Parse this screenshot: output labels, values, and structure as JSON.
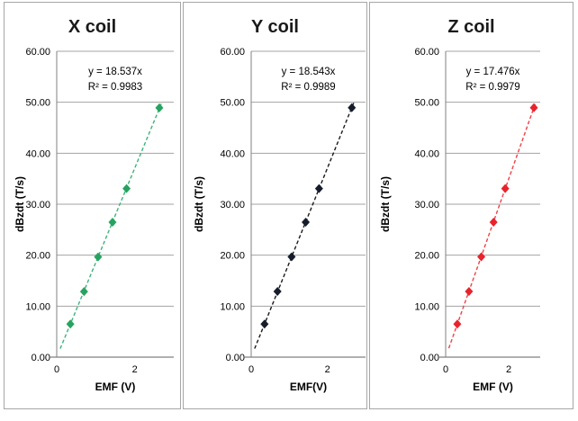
{
  "style": {
    "background": "#ffffff",
    "panel_border": "#a6a6a6",
    "grid_color": "#a3a3a3",
    "axis_color": "#808080",
    "text_color": "#000000"
  },
  "chart_data": [
    {
      "type": "scatter",
      "title": "X coil",
      "annotation": {
        "equation": "y = 18.537x",
        "r_squared": "R² = 0.9983"
      },
      "xlabel": "EMF (V)",
      "ylabel": "dBzdt (T/s)",
      "xlim": [
        0,
        3
      ],
      "ylim": [
        0,
        60
      ],
      "grid": true,
      "legend": false,
      "x_ticks": [
        {
          "v": 0,
          "label": "0"
        },
        {
          "v": 2,
          "label": "2"
        }
      ],
      "y_ticks": [
        {
          "v": 0,
          "label": "0.00"
        },
        {
          "v": 10,
          "label": "10.00"
        },
        {
          "v": 20,
          "label": "20.00"
        },
        {
          "v": 30,
          "label": "30.00"
        },
        {
          "v": 40,
          "label": "40.00"
        },
        {
          "v": 50,
          "label": "50.00"
        },
        {
          "v": 60,
          "label": "60.00"
        }
      ],
      "points": [
        [
          0.35,
          6.49
        ],
        [
          0.7,
          12.87
        ],
        [
          1.06,
          19.66
        ],
        [
          1.43,
          26.46
        ],
        [
          1.79,
          33.06
        ],
        [
          2.63,
          48.9
        ]
      ],
      "trendline": {
        "slope": 18.537,
        "intercept": 0,
        "style": "dashed",
        "x_range": [
          0.09,
          2.68
        ]
      },
      "colors": {
        "marker": "#27a35f",
        "trendline": "#3db47a"
      }
    },
    {
      "type": "scatter",
      "title": "Y coil",
      "annotation": {
        "equation": "y = 18.543x",
        "r_squared": "R² = 0.9989"
      },
      "xlabel": "EMF(V)",
      "ylabel": "dBzdt (T/s)",
      "xlim": [
        0,
        3
      ],
      "ylim": [
        0,
        60
      ],
      "grid": true,
      "legend": false,
      "x_ticks": [
        {
          "v": 0,
          "label": "0"
        },
        {
          "v": 2,
          "label": "2"
        }
      ],
      "y_ticks": [
        {
          "v": 0,
          "label": "0.00"
        },
        {
          "v": 10,
          "label": "10.00"
        },
        {
          "v": 20,
          "label": "20.00"
        },
        {
          "v": 30,
          "label": "30.00"
        },
        {
          "v": 40,
          "label": "40.00"
        },
        {
          "v": 50,
          "label": "50.00"
        },
        {
          "v": 60,
          "label": "60.00"
        }
      ],
      "points": [
        [
          0.35,
          6.49
        ],
        [
          0.69,
          12.88
        ],
        [
          1.06,
          19.67
        ],
        [
          1.43,
          26.47
        ],
        [
          1.78,
          33.07
        ],
        [
          2.64,
          48.92
        ]
      ],
      "trendline": {
        "slope": 18.543,
        "intercept": 0,
        "style": "dashed",
        "x_range": [
          0.09,
          2.69
        ]
      },
      "colors": {
        "marker": "#151c2c",
        "trendline": "#1a1a1a"
      }
    },
    {
      "type": "scatter",
      "title": "Z coil",
      "annotation": {
        "equation": "y = 17.476x",
        "r_squared": "R² = 0.9979"
      },
      "xlabel": "EMF (V)",
      "ylabel": "dBzdt (T/s)",
      "xlim": [
        0,
        3
      ],
      "ylim": [
        0,
        60
      ],
      "grid": true,
      "legend": false,
      "x_ticks": [
        {
          "v": 0,
          "label": "0"
        },
        {
          "v": 2,
          "label": "2"
        }
      ],
      "y_ticks": [
        {
          "v": 0,
          "label": "0.00"
        },
        {
          "v": 10,
          "label": "10.00"
        },
        {
          "v": 20,
          "label": "20.00"
        },
        {
          "v": 30,
          "label": "30.00"
        },
        {
          "v": 40,
          "label": "40.00"
        },
        {
          "v": 50,
          "label": "50.00"
        },
        {
          "v": 60,
          "label": "60.00"
        }
      ],
      "points": [
        [
          0.37,
          6.49
        ],
        [
          0.74,
          12.88
        ],
        [
          1.13,
          19.67
        ],
        [
          1.52,
          26.47
        ],
        [
          1.89,
          33.07
        ],
        [
          2.8,
          48.92
        ]
      ],
      "trendline": {
        "slope": 17.476,
        "intercept": 0,
        "style": "dashed",
        "x_range": [
          0.1,
          2.84
        ]
      },
      "colors": {
        "marker": "#e8232c",
        "trendline": "#ef4248"
      }
    }
  ]
}
